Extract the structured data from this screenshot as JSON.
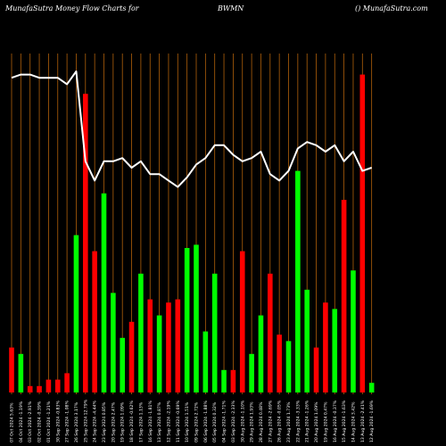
{
  "header": {
    "left": "MunafaSutra  Money Flow  Charts for",
    "symbol": "BWMN",
    "right": "() MunafaSutra.com"
  },
  "chart_data": {
    "type": "bar",
    "title": "Money Flow Chart",
    "colors": {
      "up": "#00ff00",
      "down": "#ff0000",
      "line": "#ffffff",
      "grid": "#b0600a",
      "background": "#000000"
    },
    "bars": [
      {
        "label": "07 Oct 2024 5.63%",
        "value": 14,
        "dir": "down"
      },
      {
        "label": "04 Oct 2024 -1.19%",
        "value": 12,
        "dir": "up"
      },
      {
        "label": "03 Oct 2024 -2.91%",
        "value": 2,
        "dir": "down"
      },
      {
        "label": "02 Oct 2024 -0.39%",
        "value": 2,
        "dir": "down"
      },
      {
        "label": "01 Oct 2024 -1.21%",
        "value": 4,
        "dir": "down"
      },
      {
        "label": "30 Sep 2024 -0.83%",
        "value": 4,
        "dir": "down"
      },
      {
        "label": "27 Sep 2024 -1.08%",
        "value": 6,
        "dir": "down"
      },
      {
        "label": "26 Sep 2024 3.17%",
        "value": 49,
        "dir": "up"
      },
      {
        "label": "25 Sep 2024 12.79%",
        "value": 93,
        "dir": "down"
      },
      {
        "label": "24 Sep 2024 -4.44%",
        "value": 44,
        "dir": "down"
      },
      {
        "label": "23 Sep 2024 0.85%",
        "value": 62,
        "dir": "up"
      },
      {
        "label": "20 Sep 2024 2.47%",
        "value": 31,
        "dir": "up"
      },
      {
        "label": "19 Sep 2024 1.09%",
        "value": 17,
        "dir": "up"
      },
      {
        "label": "18 Sep 2024 -0.62%",
        "value": 22,
        "dir": "down"
      },
      {
        "label": "17 Sep 2024 1.13%",
        "value": 37,
        "dir": "up"
      },
      {
        "label": "16 Sep 2024 -1.81%",
        "value": 29,
        "dir": "down"
      },
      {
        "label": "13 Sep 2024 0.87%",
        "value": 24,
        "dir": "up"
      },
      {
        "label": "12 Sep 2024 -2.19%",
        "value": 28,
        "dir": "down"
      },
      {
        "label": "11 Sep 2024 -0.69%",
        "value": 29,
        "dir": "down"
      },
      {
        "label": "10 Sep 2024 1.51%",
        "value": 45,
        "dir": "up"
      },
      {
        "label": "09 Sep 2024 2.72%",
        "value": 46,
        "dir": "up"
      },
      {
        "label": "06 Sep 2024 -1.88%",
        "value": 19,
        "dir": "up"
      },
      {
        "label": "05 Sep 2024 0.32%",
        "value": 37,
        "dir": "up"
      },
      {
        "label": "04 Sep 2024 -1.71%",
        "value": 7,
        "dir": "up"
      },
      {
        "label": "03 Sep 2024 -2.33%",
        "value": 7,
        "dir": "down"
      },
      {
        "label": "30 Aug 2024 -1.10%",
        "value": 44,
        "dir": "down"
      },
      {
        "label": "29 Aug 2024 1.93%",
        "value": 12,
        "dir": "up"
      },
      {
        "label": "28 Aug 2024 0.48%",
        "value": 24,
        "dir": "up"
      },
      {
        "label": "27 Aug 2024 -2.69%",
        "value": 37,
        "dir": "down"
      },
      {
        "label": "26 Aug 2024 -0.05%",
        "value": 18,
        "dir": "down"
      },
      {
        "label": "23 Aug 2024 1.73%",
        "value": 16,
        "dir": "up"
      },
      {
        "label": "22 Aug 2024 -3.33%",
        "value": 69,
        "dir": "up"
      },
      {
        "label": "21 Aug 2024 -1.26%",
        "value": 32,
        "dir": "up"
      },
      {
        "label": "20 Aug 2024 1.09%",
        "value": 14,
        "dir": "down"
      },
      {
        "label": "19 Aug 2024 0.47%",
        "value": 28,
        "dir": "down"
      },
      {
        "label": "16 Aug 2024 -0.37%",
        "value": 26,
        "dir": "up"
      },
      {
        "label": "15 Aug 2024 -1.63%",
        "value": 60,
        "dir": "down"
      },
      {
        "label": "14 Aug 2024 3.42%",
        "value": 38,
        "dir": "up"
      },
      {
        "label": "13 Aug 2024 -2.41%",
        "value": 99,
        "dir": "down"
      },
      {
        "label": "12 Aug 2024 -1.69%",
        "value": 3,
        "dir": "up"
      }
    ],
    "line": [
      98,
      99,
      99,
      98,
      98,
      98,
      96,
      100,
      72,
      66,
      72,
      72,
      73,
      70,
      72,
      68,
      68,
      66,
      64,
      67,
      71,
      73,
      77,
      77,
      74,
      72,
      73,
      75,
      68,
      66,
      69,
      76,
      78,
      77,
      75,
      77,
      72,
      75,
      69,
      70
    ],
    "ylim": [
      0,
      100
    ]
  }
}
